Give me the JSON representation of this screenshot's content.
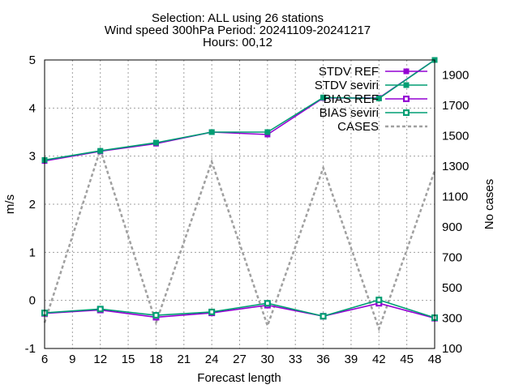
{
  "chart_data": {
    "type": "line",
    "title_lines": [
      "Selection: ALL using    26 stations",
      "Wind speed 300hPa   Period: 20241109-20241217",
      "Hours: 00,12"
    ],
    "xlabel": "Forecast length",
    "ylabel": "m/s",
    "y2label": "No cases",
    "x": [
      6,
      12,
      18,
      24,
      30,
      36,
      42,
      48
    ],
    "xlim": [
      6,
      48
    ],
    "xticks": [
      6,
      9,
      12,
      15,
      18,
      21,
      24,
      27,
      30,
      33,
      36,
      39,
      42,
      45,
      48
    ],
    "ylim": [
      -1,
      5
    ],
    "yticks": [
      -1,
      0,
      1,
      2,
      3,
      4,
      5
    ],
    "y2lim": [
      100,
      2000
    ],
    "y2ticks": [
      100,
      300,
      500,
      700,
      900,
      1100,
      1300,
      1500,
      1700,
      1900
    ],
    "grid": true,
    "legend_position": "top-right",
    "series": [
      {
        "name": "STDV REF",
        "axis": "y",
        "color": "#9400d3",
        "marker": "filled-square",
        "values": [
          2.9,
          3.1,
          3.26,
          3.5,
          3.45,
          4.21,
          4.21,
          5.0
        ]
      },
      {
        "name": "STDV seviri",
        "axis": "y",
        "color": "#009e73",
        "marker": "filled-square",
        "values": [
          2.92,
          3.11,
          3.28,
          3.5,
          3.5,
          4.22,
          4.2,
          5.0
        ]
      },
      {
        "name": "BIAS REF",
        "axis": "y",
        "color": "#9400d3",
        "marker": "open-square",
        "values": [
          -0.27,
          -0.2,
          -0.35,
          -0.26,
          -0.1,
          -0.33,
          -0.06,
          -0.37
        ]
      },
      {
        "name": "BIAS seviri",
        "axis": "y",
        "color": "#009e73",
        "marker": "open-square",
        "values": [
          -0.26,
          -0.18,
          -0.31,
          -0.24,
          -0.06,
          -0.33,
          0.01,
          -0.36
        ]
      },
      {
        "name": "CASES",
        "axis": "y2",
        "color": "#a0a0a0",
        "marker": "none",
        "dashed": true,
        "values": [
          270,
          1410,
          270,
          1330,
          250,
          1290,
          230,
          1270
        ]
      }
    ]
  }
}
